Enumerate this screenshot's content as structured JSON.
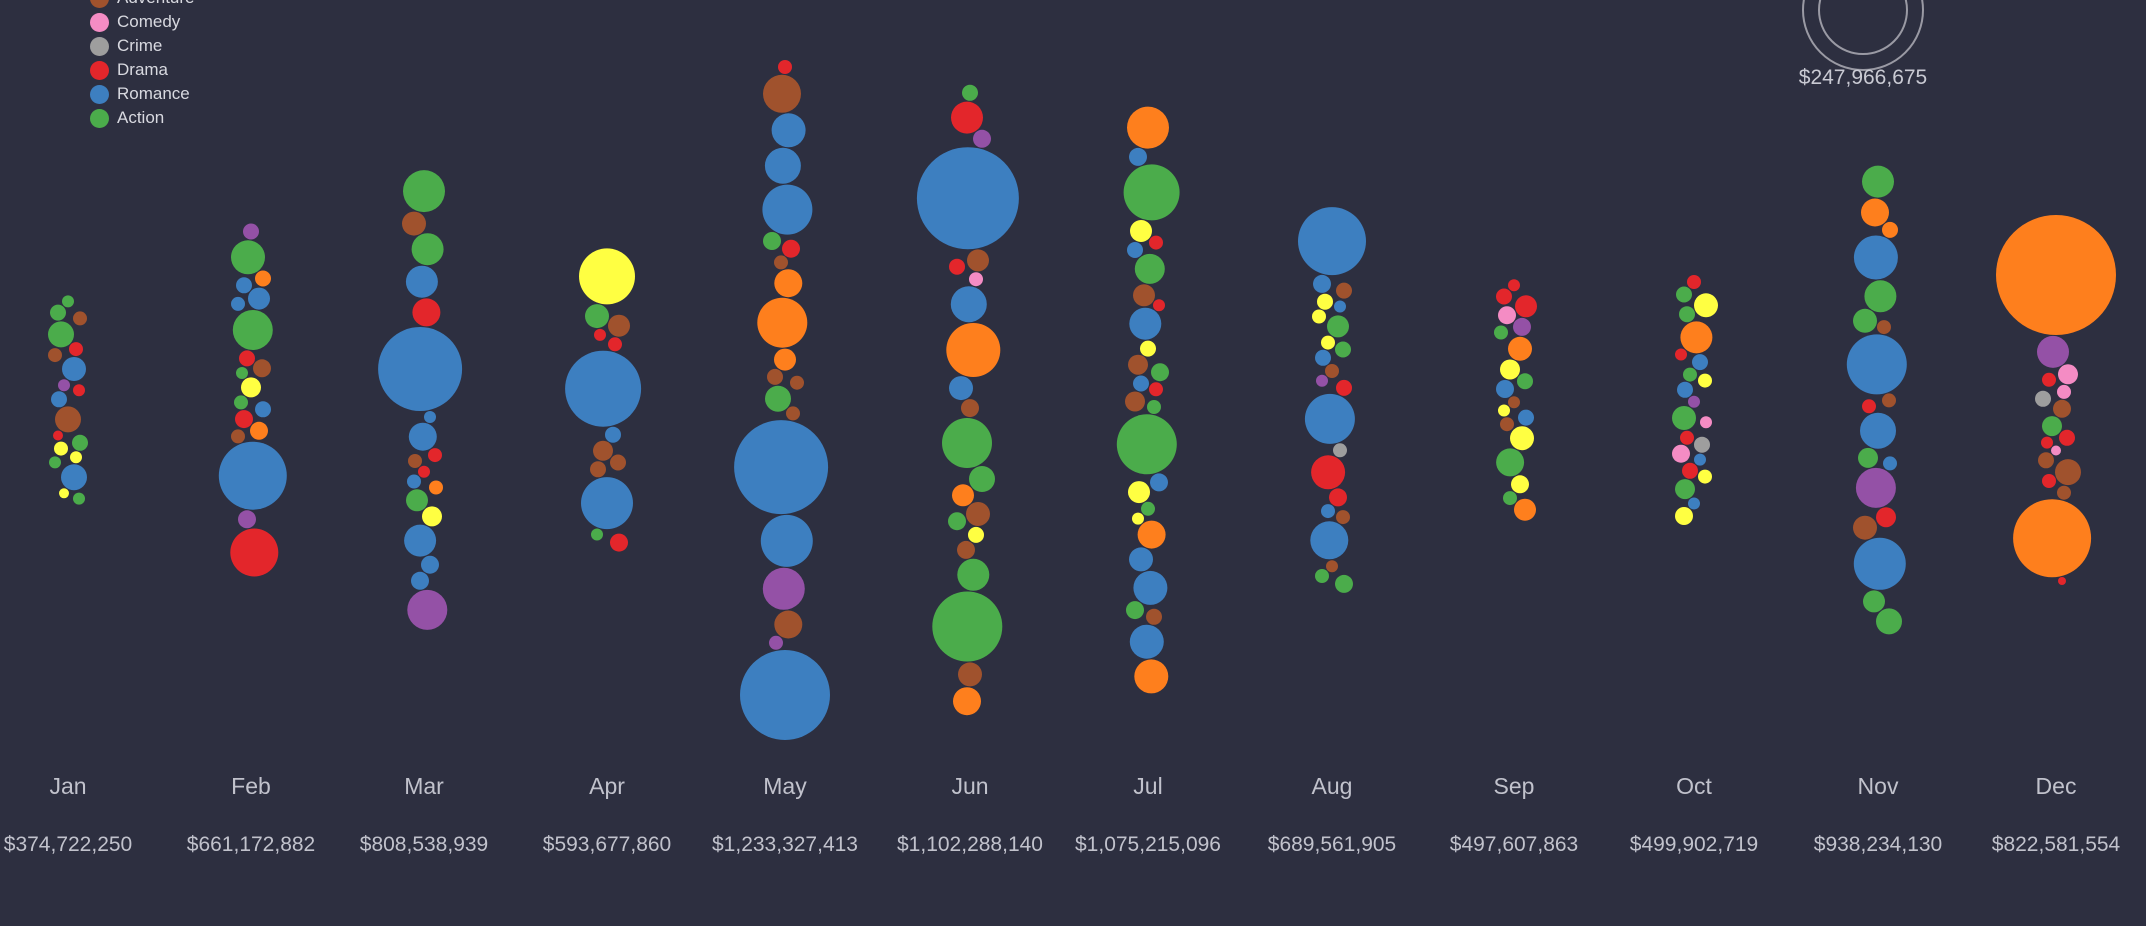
{
  "chart_data": {
    "type": "bubble-swarm",
    "legend_position": "top-left",
    "legend": [
      {
        "genre": "Adventure",
        "color": "#a0522d"
      },
      {
        "genre": "Comedy",
        "color": "#f48cc4"
      },
      {
        "genre": "Crime",
        "color": "#9e9e9e"
      },
      {
        "genre": "Drama",
        "color": "#e3262b"
      },
      {
        "genre": "Romance",
        "color": "#3d7fc0"
      },
      {
        "genre": "Action",
        "color": "#4bac4b"
      }
    ],
    "extra_colors": {
      "thriller": "#ffff42",
      "animation": "#fe7f1d",
      "fantasy": "#9451a6"
    },
    "scale_reference": "$247,966,675",
    "months": [
      {
        "month": "Jan",
        "total": "$374,722,250",
        "total_value": 374722250,
        "bubbles": [
          [
            "action",
            6
          ],
          [
            "action",
            8
          ],
          [
            "adventure",
            7
          ],
          [
            "action",
            13
          ],
          [
            "drama",
            7
          ],
          [
            "adventure",
            7
          ],
          [
            "romance",
            12
          ],
          [
            "fantasy",
            6
          ],
          [
            "drama",
            6
          ],
          [
            "romance",
            8
          ],
          [
            "adventure",
            13
          ],
          [
            "drama",
            5
          ],
          [
            "action",
            8
          ],
          [
            "thriller",
            7
          ],
          [
            "thriller",
            6
          ],
          [
            "action",
            6
          ],
          [
            "romance",
            13
          ],
          [
            "thriller",
            5
          ],
          [
            "action",
            6
          ]
        ]
      },
      {
        "month": "Feb",
        "total": "$661,172,882",
        "total_value": 661172882,
        "bubbles": [
          [
            "fantasy",
            8
          ],
          [
            "action",
            17
          ],
          [
            "animation",
            8
          ],
          [
            "romance",
            8
          ],
          [
            "romance",
            11
          ],
          [
            "romance",
            7
          ],
          [
            "action",
            20
          ],
          [
            "drama",
            8
          ],
          [
            "adventure",
            9
          ],
          [
            "action",
            6
          ],
          [
            "thriller",
            10
          ],
          [
            "action",
            7
          ],
          [
            "romance",
            8
          ],
          [
            "drama",
            9
          ],
          [
            "animation",
            9
          ],
          [
            "adventure",
            7
          ],
          [
            "romance",
            34
          ],
          [
            "fantasy",
            9
          ],
          [
            "drama",
            24
          ]
        ]
      },
      {
        "month": "Mar",
        "total": "$808,538,939",
        "total_value": 808538939,
        "bubbles": [
          [
            "action",
            21
          ],
          [
            "adventure",
            12
          ],
          [
            "action",
            16
          ],
          [
            "romance",
            16
          ],
          [
            "drama",
            14
          ],
          [
            "romance",
            42
          ],
          [
            "romance",
            6
          ],
          [
            "romance",
            14
          ],
          [
            "drama",
            7
          ],
          [
            "adventure",
            7
          ],
          [
            "drama",
            6
          ],
          [
            "romance",
            7
          ],
          [
            "animation",
            7
          ],
          [
            "action",
            11
          ],
          [
            "thriller",
            10
          ],
          [
            "romance",
            16
          ],
          [
            "romance",
            9
          ],
          [
            "romance",
            9
          ],
          [
            "fantasy",
            20
          ]
        ]
      },
      {
        "month": "Apr",
        "total": "$593,677,860",
        "total_value": 593677860,
        "bubbles": [
          [
            "thriller",
            28
          ],
          [
            "action",
            12
          ],
          [
            "adventure",
            11
          ],
          [
            "drama",
            6
          ],
          [
            "drama",
            7
          ],
          [
            "romance",
            38
          ],
          [
            "romance",
            8
          ],
          [
            "adventure",
            10
          ],
          [
            "adventure",
            8
          ],
          [
            "adventure",
            8
          ],
          [
            "romance",
            26
          ],
          [
            "action",
            6
          ],
          [
            "drama",
            9
          ]
        ]
      },
      {
        "month": "May",
        "total": "$1,233,327,413",
        "total_value": 1233327413,
        "bubbles": [
          [
            "drama",
            7
          ],
          [
            "adventure",
            19
          ],
          [
            "romance",
            17
          ],
          [
            "romance",
            18
          ],
          [
            "romance",
            25
          ],
          [
            "action",
            9
          ],
          [
            "drama",
            9
          ],
          [
            "adventure",
            7
          ],
          [
            "animation",
            14
          ],
          [
            "animation",
            25
          ],
          [
            "animation",
            11
          ],
          [
            "adventure",
            8
          ],
          [
            "adventure",
            7
          ],
          [
            "action",
            13
          ],
          [
            "adventure",
            7
          ],
          [
            "romance",
            47
          ],
          [
            "romance",
            26
          ],
          [
            "fantasy",
            21
          ],
          [
            "adventure",
            14
          ],
          [
            "fantasy",
            7
          ],
          [
            "romance",
            45
          ]
        ]
      },
      {
        "month": "Jun",
        "total": "$1,102,288,140",
        "total_value": 1102288140,
        "bubbles": [
          [
            "action",
            8
          ],
          [
            "drama",
            16
          ],
          [
            "fantasy",
            9
          ],
          [
            "romance",
            51
          ],
          [
            "adventure",
            11
          ],
          [
            "drama",
            8
          ],
          [
            "comedy",
            7
          ],
          [
            "romance",
            18
          ],
          [
            "animation",
            27
          ],
          [
            "romance",
            12
          ],
          [
            "adventure",
            9
          ],
          [
            "action",
            25
          ],
          [
            "action",
            13
          ],
          [
            "animation",
            11
          ],
          [
            "adventure",
            12
          ],
          [
            "action",
            9
          ],
          [
            "thriller",
            8
          ],
          [
            "adventure",
            9
          ],
          [
            "action",
            16
          ],
          [
            "action",
            35
          ],
          [
            "adventure",
            12
          ],
          [
            "animation",
            14
          ]
        ]
      },
      {
        "month": "Jul",
        "total": "$1,075,215,096",
        "total_value": 1075215096,
        "bubbles": [
          [
            "animation",
            21
          ],
          [
            "romance",
            9
          ],
          [
            "action",
            28
          ],
          [
            "thriller",
            11
          ],
          [
            "drama",
            7
          ],
          [
            "romance",
            8
          ],
          [
            "action",
            15
          ],
          [
            "adventure",
            11
          ],
          [
            "drama",
            6
          ],
          [
            "romance",
            16
          ],
          [
            "thriller",
            8
          ],
          [
            "adventure",
            10
          ],
          [
            "action",
            9
          ],
          [
            "romance",
            8
          ],
          [
            "drama",
            7
          ],
          [
            "adventure",
            10
          ],
          [
            "action",
            7
          ],
          [
            "action",
            30
          ],
          [
            "romance",
            9
          ],
          [
            "thriller",
            11
          ],
          [
            "action",
            7
          ],
          [
            "thriller",
            6
          ],
          [
            "animation",
            14
          ],
          [
            "romance",
            12
          ],
          [
            "romance",
            17
          ],
          [
            "action",
            9
          ],
          [
            "adventure",
            8
          ],
          [
            "romance",
            17
          ],
          [
            "animation",
            17
          ]
        ]
      },
      {
        "month": "Aug",
        "total": "$689,561,905",
        "total_value": 689561905,
        "bubbles": [
          [
            "romance",
            34
          ],
          [
            "romance",
            9
          ],
          [
            "adventure",
            8
          ],
          [
            "thriller",
            8
          ],
          [
            "romance",
            6
          ],
          [
            "thriller",
            7
          ],
          [
            "action",
            11
          ],
          [
            "thriller",
            7
          ],
          [
            "action",
            8
          ],
          [
            "romance",
            8
          ],
          [
            "adventure",
            7
          ],
          [
            "fantasy",
            6
          ],
          [
            "drama",
            8
          ],
          [
            "romance",
            25
          ],
          [
            "crime",
            7
          ],
          [
            "drama",
            17
          ],
          [
            "drama",
            9
          ],
          [
            "romance",
            7
          ],
          [
            "adventure",
            7
          ],
          [
            "romance",
            19
          ],
          [
            "adventure",
            6
          ],
          [
            "action",
            7
          ],
          [
            "action",
            9
          ]
        ]
      },
      {
        "month": "Sep",
        "total": "$497,607,863",
        "total_value": 497607863,
        "bubbles": [
          [
            "drama",
            6
          ],
          [
            "drama",
            8
          ],
          [
            "drama",
            11
          ],
          [
            "comedy",
            9
          ],
          [
            "fantasy",
            9
          ],
          [
            "action",
            7
          ],
          [
            "animation",
            12
          ],
          [
            "thriller",
            10
          ],
          [
            "action",
            8
          ],
          [
            "romance",
            9
          ],
          [
            "adventure",
            6
          ],
          [
            "thriller",
            6
          ],
          [
            "romance",
            8
          ],
          [
            "adventure",
            7
          ],
          [
            "thriller",
            12
          ],
          [
            "action",
            14
          ],
          [
            "thriller",
            9
          ],
          [
            "action",
            7
          ],
          [
            "animation",
            11
          ]
        ]
      },
      {
        "month": "Oct",
        "total": "$499,902,719",
        "total_value": 499902719,
        "bubbles": [
          [
            "drama",
            7
          ],
          [
            "action",
            8
          ],
          [
            "thriller",
            12
          ],
          [
            "action",
            8
          ],
          [
            "animation",
            16
          ],
          [
            "drama",
            6
          ],
          [
            "romance",
            8
          ],
          [
            "action",
            7
          ],
          [
            "thriller",
            7
          ],
          [
            "romance",
            8
          ],
          [
            "fantasy",
            6
          ],
          [
            "action",
            12
          ],
          [
            "comedy",
            6
          ],
          [
            "drama",
            7
          ],
          [
            "crime",
            8
          ],
          [
            "comedy",
            9
          ],
          [
            "romance",
            6
          ],
          [
            "drama",
            8
          ],
          [
            "thriller",
            7
          ],
          [
            "action",
            10
          ],
          [
            "romance",
            6
          ],
          [
            "thriller",
            9
          ]
        ]
      },
      {
        "month": "Nov",
        "total": "$938,234,130",
        "total_value": 938234130,
        "bubbles": [
          [
            "action",
            16
          ],
          [
            "animation",
            14
          ],
          [
            "animation",
            8
          ],
          [
            "romance",
            22
          ],
          [
            "action",
            16
          ],
          [
            "action",
            12
          ],
          [
            "adventure",
            7
          ],
          [
            "romance",
            30
          ],
          [
            "adventure",
            7
          ],
          [
            "drama",
            7
          ],
          [
            "romance",
            18
          ],
          [
            "action",
            10
          ],
          [
            "romance",
            7
          ],
          [
            "fantasy",
            20
          ],
          [
            "drama",
            10
          ],
          [
            "adventure",
            12
          ],
          [
            "romance",
            26
          ],
          [
            "action",
            11
          ],
          [
            "action",
            13
          ]
        ]
      },
      {
        "month": "Dec",
        "total": "$822,581,554",
        "total_value": 822581554,
        "bubbles": [
          [
            "animation",
            60
          ],
          [
            "fantasy",
            16
          ],
          [
            "comedy",
            10
          ],
          [
            "drama",
            7
          ],
          [
            "comedy",
            7
          ],
          [
            "crime",
            8
          ],
          [
            "adventure",
            9
          ],
          [
            "action",
            10
          ],
          [
            "drama",
            8
          ],
          [
            "drama",
            6
          ],
          [
            "comedy",
            5
          ],
          [
            "adventure",
            8
          ],
          [
            "adventure",
            13
          ],
          [
            "drama",
            7
          ],
          [
            "adventure",
            7
          ],
          [
            "animation",
            39
          ],
          [
            "drama",
            4
          ]
        ]
      }
    ]
  }
}
